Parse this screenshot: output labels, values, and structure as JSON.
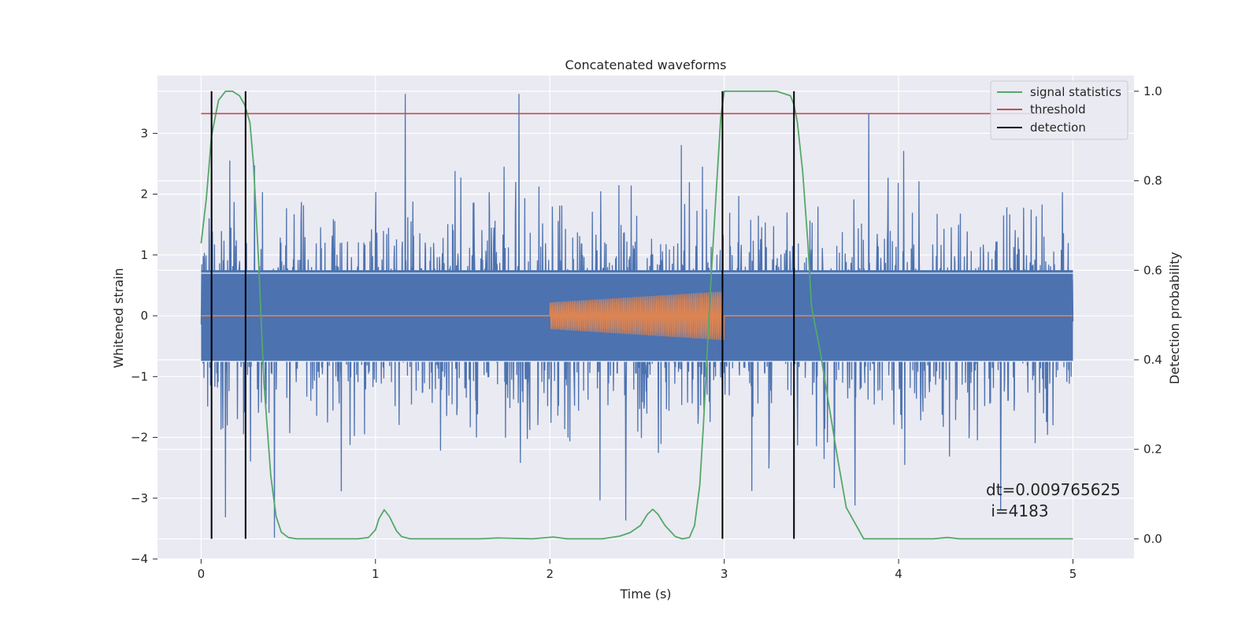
{
  "chart_data": {
    "type": "line",
    "title": "Concatenated waveforms",
    "xlabel": "Time (s)",
    "ylabel": "Whitened strain",
    "y2label": "Detection probability",
    "xlim": [
      -0.25,
      5.35
    ],
    "ylim": [
      -4.0,
      3.95
    ],
    "y2lim": [
      -0.045,
      1.035
    ],
    "x_ticks": [
      0,
      1,
      2,
      3,
      4,
      5
    ],
    "y_ticks": [
      -4,
      -3,
      -2,
      -1,
      0,
      1,
      2,
      3
    ],
    "y2_ticks": [
      0.0,
      0.2,
      0.4,
      0.6,
      0.8,
      1.0
    ],
    "x_tick_labels": [
      "0",
      "1",
      "2",
      "3",
      "4",
      "5"
    ],
    "y_tick_labels": [
      "−4",
      "−3",
      "−2",
      "−1",
      "0",
      "1",
      "2",
      "3"
    ],
    "y2_tick_labels": [
      "0.0",
      "0.2",
      "0.4",
      "0.6",
      "0.8",
      "1.0"
    ],
    "grid": true,
    "legend_position": "upper right",
    "series": [
      {
        "name": "",
        "axis": "left",
        "color": "#4c72b0",
        "description": "whitened strain noise",
        "x_range": [
          0,
          5
        ],
        "typical_amplitude": 1.0,
        "max": 3.65,
        "min": -3.65
      },
      {
        "name": "",
        "axis": "left",
        "color": "#dd8452",
        "description": "injected waveform",
        "x_range": [
          0,
          5
        ],
        "segment": [
          2.0,
          3.0
        ],
        "amplitude_start": 0.22,
        "amplitude_end": 0.4
      },
      {
        "name": "signal statistics",
        "axis": "right",
        "color": "#55a868",
        "x": [
          0.0,
          0.03,
          0.06,
          0.1,
          0.14,
          0.18,
          0.22,
          0.25,
          0.28,
          0.3,
          0.33,
          0.36,
          0.4,
          0.43,
          0.46,
          0.5,
          0.55,
          0.7,
          0.9,
          0.96,
          1.0,
          1.02,
          1.05,
          1.08,
          1.12,
          1.15,
          1.2,
          1.6,
          1.7,
          1.9,
          2.02,
          2.1,
          2.3,
          2.4,
          2.46,
          2.52,
          2.56,
          2.59,
          2.62,
          2.66,
          2.72,
          2.76,
          2.8,
          2.83,
          2.86,
          2.88,
          2.9,
          2.92,
          2.95,
          2.98,
          3.0,
          3.05,
          3.1,
          3.2,
          3.3,
          3.38,
          3.4,
          3.42,
          3.45,
          3.48,
          3.5,
          3.55,
          3.6,
          3.65,
          3.7,
          3.8,
          4.0,
          4.2,
          4.28,
          4.35,
          4.6,
          5.0
        ],
        "y": [
          0.66,
          0.76,
          0.9,
          0.98,
          1.0,
          1.0,
          0.99,
          0.97,
          0.93,
          0.84,
          0.62,
          0.35,
          0.14,
          0.05,
          0.015,
          0.003,
          0.0,
          0.0,
          0.0,
          0.003,
          0.02,
          0.045,
          0.065,
          0.05,
          0.018,
          0.005,
          0.0,
          0.0,
          0.002,
          0.0,
          0.004,
          0.0,
          0.0,
          0.006,
          0.014,
          0.03,
          0.055,
          0.066,
          0.055,
          0.03,
          0.005,
          0.0,
          0.003,
          0.03,
          0.12,
          0.25,
          0.4,
          0.55,
          0.75,
          0.94,
          1.0,
          1.0,
          1.0,
          1.0,
          1.0,
          0.99,
          0.97,
          0.93,
          0.82,
          0.66,
          0.52,
          0.42,
          0.3,
          0.18,
          0.07,
          0.0,
          0.0,
          0.0,
          0.003,
          0.0,
          0.0,
          0.0
        ]
      },
      {
        "name": "threshold",
        "axis": "right",
        "color": "#c44e52",
        "x": [
          0.0,
          5.0
        ],
        "y": [
          0.95,
          0.95
        ]
      },
      {
        "name": "detection",
        "axis": "right",
        "color": "#000000",
        "vlines": [
          0.06,
          0.255,
          2.99,
          3.4
        ],
        "ymin": 0.0,
        "ymax": 1.0
      }
    ],
    "annotations": [
      "dt=0.009765625",
      " i=4183"
    ]
  }
}
